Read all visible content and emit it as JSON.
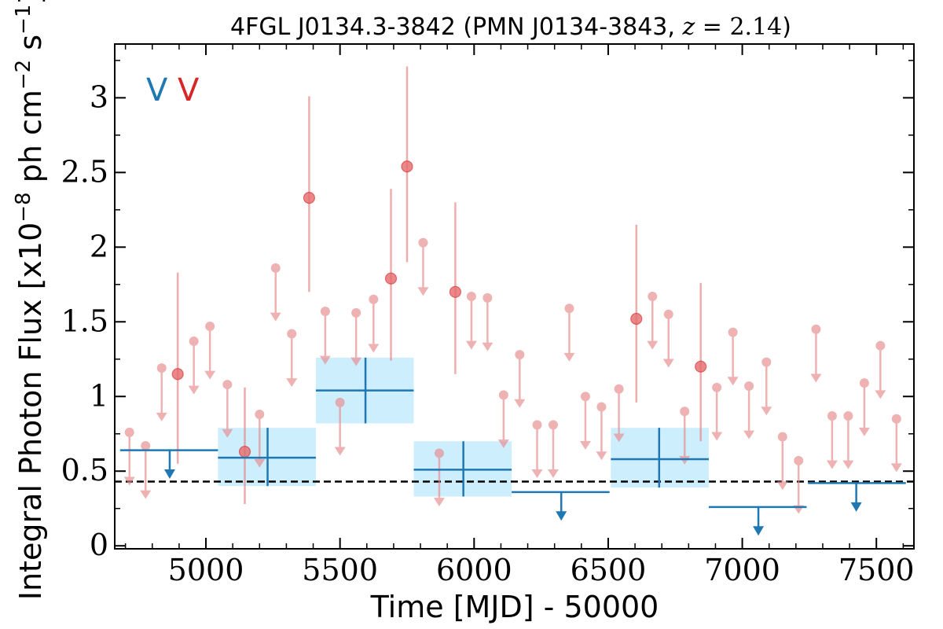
{
  "chart_data": {
    "type": "scatter",
    "title": "4FGL J0134.3-3842 (PMN J0134-3843, z = 2.14)",
    "title_parts": {
      "main": "4FGL J0134.3-3842 (PMN J0134-3843, ",
      "z_var": "z",
      "z_eq": " = 2.14",
      "close": ")"
    },
    "xlabel": "Time [MJD] - 50000",
    "ylabel": "Integral Photon Flux [x10",
    "ylabel_exp": "−8",
    "ylabel_mid": " ph cm",
    "ylabel_exp2": "−2",
    "ylabel_end": " s",
    "ylabel_exp3": "−1",
    "ylabel_close": "]",
    "xlim": [
      4660,
      7640
    ],
    "ylim": [
      -0.02,
      3.36
    ],
    "x_ticks": [
      5000,
      5500,
      6000,
      6500,
      7000,
      7500
    ],
    "x_tick_labels": [
      "5000",
      "5500",
      "6000",
      "6500",
      "7000",
      "7500"
    ],
    "y_ticks": [
      0,
      0.5,
      1,
      1.5,
      2,
      2.5,
      3
    ],
    "y_tick_labels": [
      "0",
      "0.5",
      "1",
      "1.5",
      "2",
      "2.5",
      "3"
    ],
    "reference_line": 0.43,
    "legend_markers": [
      {
        "text": "V",
        "color": "#1f77b4"
      },
      {
        "text": "V",
        "color": "#d62728"
      }
    ],
    "colors": {
      "blue": "#1f77b4",
      "box": "#cdeefc",
      "red": "#e8898b",
      "red_dark": "#d62728"
    },
    "series": [
      {
        "name": "red_detections",
        "points": [
          {
            "x": 4895,
            "y": 1.15,
            "lo": 0.55,
            "hi": 1.83
          },
          {
            "x": 5145,
            "y": 0.63,
            "lo": 0.28,
            "hi": 1.06
          },
          {
            "x": 5385,
            "y": 2.33,
            "lo": 1.7,
            "hi": 3.01
          },
          {
            "x": 5690,
            "y": 1.79,
            "lo": 1.24,
            "hi": 2.39
          },
          {
            "x": 5750,
            "y": 2.54,
            "lo": 1.9,
            "hi": 3.21
          },
          {
            "x": 5930,
            "y": 1.7,
            "lo": 1.15,
            "hi": 2.3
          },
          {
            "x": 6605,
            "y": 1.52,
            "lo": 0.96,
            "hi": 2.15
          },
          {
            "x": 6845,
            "y": 1.2,
            "lo": 0.7,
            "hi": 1.76
          }
        ]
      },
      {
        "name": "red_upper_limits",
        "points": [
          {
            "x": 4715,
            "y": 0.76
          },
          {
            "x": 4775,
            "y": 0.67
          },
          {
            "x": 4835,
            "y": 1.19
          },
          {
            "x": 4955,
            "y": 1.37
          },
          {
            "x": 5015,
            "y": 1.47
          },
          {
            "x": 5080,
            "y": 1.08
          },
          {
            "x": 5200,
            "y": 0.88
          },
          {
            "x": 5260,
            "y": 1.86
          },
          {
            "x": 5320,
            "y": 1.42
          },
          {
            "x": 5445,
            "y": 1.57
          },
          {
            "x": 5500,
            "y": 0.96
          },
          {
            "x": 5560,
            "y": 1.56
          },
          {
            "x": 5625,
            "y": 1.65
          },
          {
            "x": 5810,
            "y": 2.03
          },
          {
            "x": 5870,
            "y": 0.62
          },
          {
            "x": 5990,
            "y": 1.67
          },
          {
            "x": 6050,
            "y": 1.66
          },
          {
            "x": 6110,
            "y": 1.01
          },
          {
            "x": 6170,
            "y": 1.28
          },
          {
            "x": 6235,
            "y": 0.81
          },
          {
            "x": 6295,
            "y": 0.81
          },
          {
            "x": 6355,
            "y": 1.59
          },
          {
            "x": 6415,
            "y": 1.0
          },
          {
            "x": 6475,
            "y": 0.93
          },
          {
            "x": 6540,
            "y": 1.05
          },
          {
            "x": 6665,
            "y": 1.67
          },
          {
            "x": 6725,
            "y": 1.55
          },
          {
            "x": 6785,
            "y": 0.9
          },
          {
            "x": 6905,
            "y": 1.06
          },
          {
            "x": 6965,
            "y": 1.43
          },
          {
            "x": 7025,
            "y": 1.07
          },
          {
            "x": 7090,
            "y": 1.23
          },
          {
            "x": 7150,
            "y": 0.73
          },
          {
            "x": 7210,
            "y": 0.57
          },
          {
            "x": 7275,
            "y": 1.45
          },
          {
            "x": 7335,
            "y": 0.87
          },
          {
            "x": 7395,
            "y": 0.87
          },
          {
            "x": 7455,
            "y": 1.09
          },
          {
            "x": 7515,
            "y": 1.34
          },
          {
            "x": 7575,
            "y": 0.85
          }
        ]
      },
      {
        "name": "blue_detections",
        "points": [
          {
            "x0": 5045,
            "x1": 5410,
            "xc": 5230,
            "y": 0.59,
            "lo": 0.4,
            "hi": 0.79
          },
          {
            "x0": 5410,
            "x1": 5775,
            "xc": 5595,
            "y": 1.04,
            "lo": 0.82,
            "hi": 1.26
          },
          {
            "x0": 5775,
            "x1": 6140,
            "xc": 5960,
            "y": 0.51,
            "lo": 0.33,
            "hi": 0.7
          },
          {
            "x0": 6510,
            "x1": 6875,
            "xc": 6690,
            "y": 0.58,
            "lo": 0.39,
            "hi": 0.79
          }
        ]
      },
      {
        "name": "blue_upper_limits",
        "points": [
          {
            "x0": 4680,
            "x1": 5045,
            "xc": 4865,
            "y": 0.64
          },
          {
            "x0": 6140,
            "x1": 6505,
            "xc": 6325,
            "y": 0.36
          },
          {
            "x0": 6875,
            "x1": 7240,
            "xc": 7060,
            "y": 0.26
          },
          {
            "x0": 7245,
            "x1": 7610,
            "xc": 7425,
            "y": 0.42
          }
        ]
      }
    ]
  }
}
